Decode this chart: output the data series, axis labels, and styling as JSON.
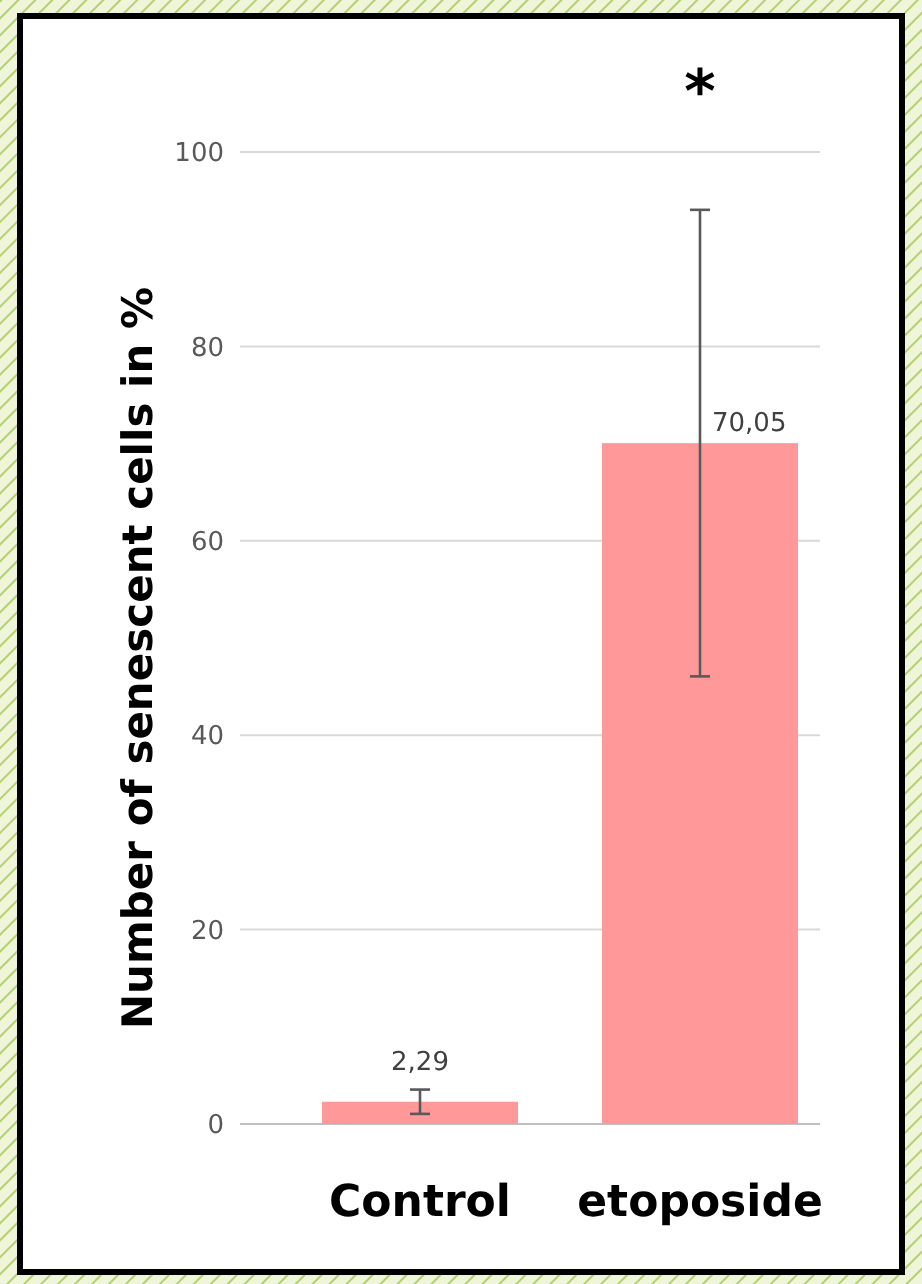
{
  "chart_data": {
    "type": "bar",
    "ylabel": "Number of senescent cells in %",
    "categories": [
      "Control",
      "etoposide"
    ],
    "values": [
      2.29,
      70.05
    ],
    "errors": [
      1.25,
      24
    ],
    "value_labels": [
      "2,29",
      "70,05"
    ],
    "color": "#ff9999",
    "ylim": [
      0,
      100
    ],
    "yticks": [
      0,
      20,
      40,
      60,
      80,
      100
    ],
    "grid": "y",
    "annotations": [
      "*"
    ]
  }
}
